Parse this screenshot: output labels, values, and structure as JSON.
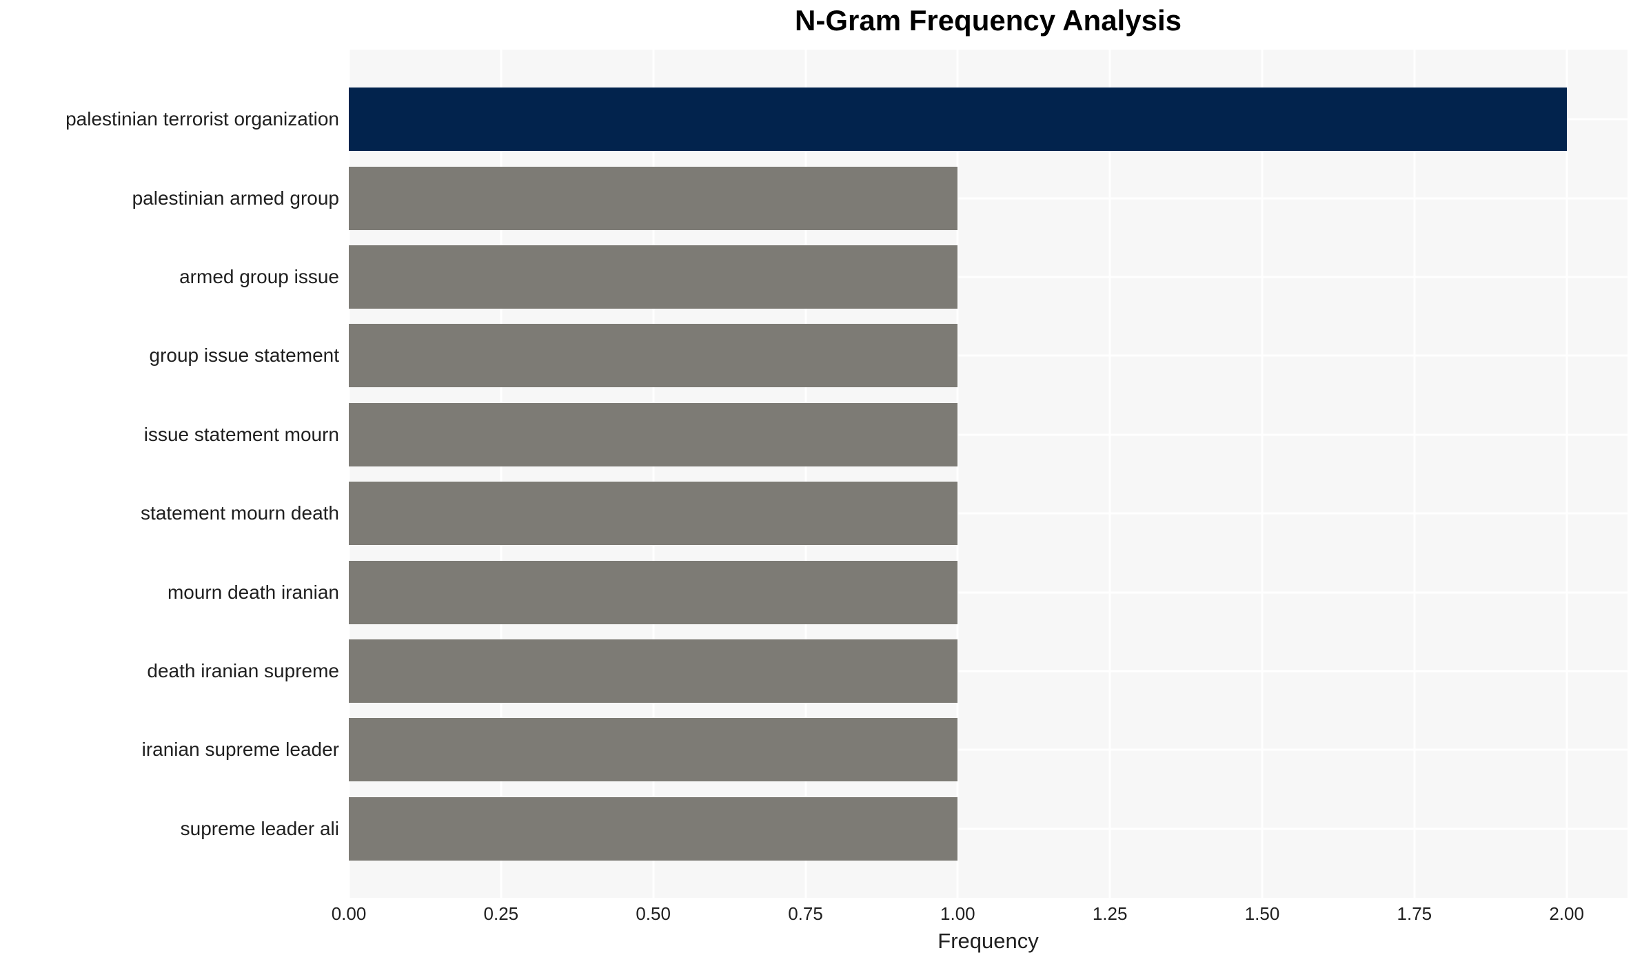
{
  "chart_data": {
    "type": "bar",
    "orientation": "horizontal",
    "title": "N-Gram Frequency Analysis",
    "xlabel": "Frequency",
    "ylabel": "",
    "categories": [
      "palestinian terrorist organization",
      "palestinian armed group",
      "armed group issue",
      "group issue statement",
      "issue statement mourn",
      "statement mourn death",
      "mourn death iranian",
      "death iranian supreme",
      "iranian supreme leader",
      "supreme leader ali"
    ],
    "values": [
      2,
      1,
      1,
      1,
      1,
      1,
      1,
      1,
      1,
      1
    ],
    "highlight_index": 0,
    "xlim": [
      0,
      2.1
    ],
    "x_ticks": [
      0,
      0.25,
      0.5,
      0.75,
      1,
      1.25,
      1.5,
      1.75,
      2
    ],
    "x_tick_labels": [
      "0.00",
      "0.25",
      "0.50",
      "0.75",
      "1.00",
      "1.25",
      "1.50",
      "1.75",
      "2.00"
    ],
    "grid": true,
    "legend": false
  },
  "style": {
    "bar_color_highlight": "#02234d",
    "bar_color_default": "#7d7b75",
    "plot_background": "#f7f7f7",
    "gridline_color": "#ffffff",
    "text_color": "#1f1f1f",
    "title_color": "#000000"
  }
}
